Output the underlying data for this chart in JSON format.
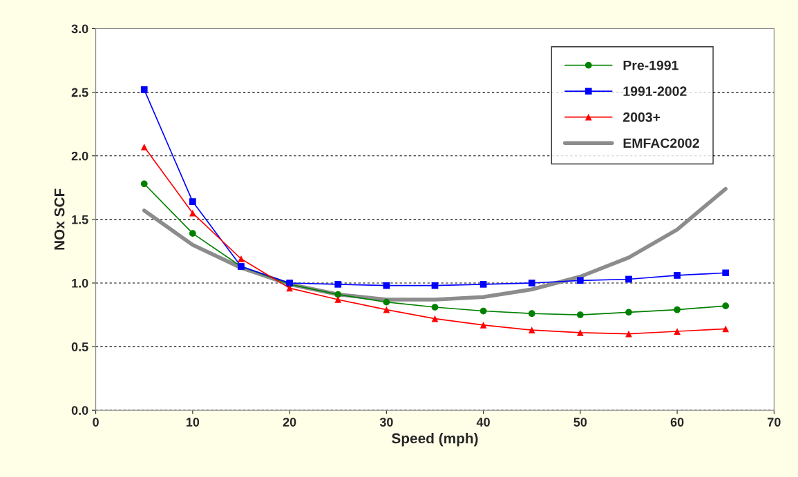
{
  "chart_data": {
    "type": "line",
    "xlabel": "Speed (mph)",
    "ylabel": "NOx SCF",
    "x": [
      5,
      10,
      15,
      20,
      25,
      30,
      35,
      40,
      45,
      50,
      55,
      60,
      65
    ],
    "xlim": [
      0,
      70
    ],
    "xticks": [
      0,
      10,
      20,
      30,
      40,
      50,
      60,
      70
    ],
    "ylim": [
      0,
      3
    ],
    "yticks": [
      {
        "value": 0,
        "label": "0.0"
      },
      {
        "value": 0.5,
        "label": "0.5"
      },
      {
        "value": 1,
        "label": "1.0"
      },
      {
        "value": 1.5,
        "label": "1.5"
      },
      {
        "value": 2,
        "label": "2.0"
      },
      {
        "value": 2.5,
        "label": "2.5"
      },
      {
        "value": 3,
        "label": "3.0"
      }
    ],
    "grid": "y",
    "legend": "top right",
    "series": [
      {
        "name": "Pre-1991",
        "color": "#008000",
        "marker": "circle",
        "values": [
          1.78,
          1.39,
          1.13,
          0.99,
          0.91,
          0.85,
          0.81,
          0.78,
          0.76,
          0.75,
          0.77,
          0.79,
          0.82
        ]
      },
      {
        "name": "1991-2002",
        "color": "#0000ff",
        "marker": "square",
        "values": [
          2.52,
          1.64,
          1.13,
          1.0,
          0.99,
          0.98,
          0.98,
          0.99,
          1.0,
          1.02,
          1.03,
          1.06,
          1.08
        ]
      },
      {
        "name": "2003+",
        "color": "#ff0000",
        "marker": "triangle",
        "values": [
          2.07,
          1.55,
          1.19,
          0.96,
          0.87,
          0.79,
          0.72,
          0.67,
          0.63,
          0.61,
          0.6,
          0.62,
          0.64
        ]
      },
      {
        "name": "EMFAC2002",
        "color": "#8c8c8c",
        "marker": "none",
        "values": [
          1.57,
          1.3,
          1.12,
          0.99,
          0.91,
          0.87,
          0.87,
          0.89,
          0.95,
          1.05,
          1.2,
          1.42,
          1.74
        ]
      }
    ]
  }
}
